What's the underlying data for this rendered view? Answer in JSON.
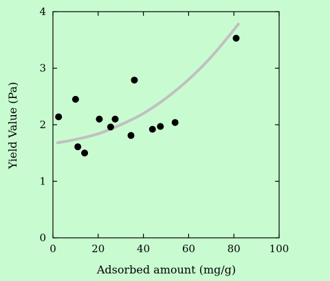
{
  "colors": {
    "background": "#c8fcd0",
    "axis": "#000000",
    "points": "#000000",
    "trend": "#c0c0c0"
  },
  "chart_data": {
    "type": "scatter",
    "title": "",
    "xlabel": "Adsorbed amount (mg/g)",
    "ylabel": "Yield Value (Pa)",
    "xlim": [
      0,
      100
    ],
    "ylim": [
      0,
      4
    ],
    "x_ticks": [
      0,
      20,
      40,
      60,
      80,
      100
    ],
    "y_ticks": [
      0,
      1,
      2,
      3,
      4
    ],
    "x_tick_labels": [
      "0",
      "20",
      "40",
      "60",
      "80",
      "100"
    ],
    "y_tick_labels": [
      "0",
      "1",
      "2",
      "3",
      "4"
    ],
    "grid": false,
    "legend": "none",
    "series": [
      {
        "points": [
          {
            "x": 2.5,
            "y": 2.14
          },
          {
            "x": 10,
            "y": 2.45
          },
          {
            "x": 11,
            "y": 1.61
          },
          {
            "x": 14,
            "y": 1.5
          },
          {
            "x": 20.5,
            "y": 2.1
          },
          {
            "x": 25.5,
            "y": 1.96
          },
          {
            "x": 27.5,
            "y": 2.1
          },
          {
            "x": 34.5,
            "y": 1.81
          },
          {
            "x": 36,
            "y": 2.79
          },
          {
            "x": 44,
            "y": 1.92
          },
          {
            "x": 47.5,
            "y": 1.97
          },
          {
            "x": 54,
            "y": 2.04
          },
          {
            "x": 81,
            "y": 3.53
          }
        ]
      }
    ],
    "trend_line": {
      "points": [
        {
          "x": 2,
          "y": 1.68
        },
        {
          "x": 10,
          "y": 1.74
        },
        {
          "x": 20,
          "y": 1.84
        },
        {
          "x": 30,
          "y": 2.0
        },
        {
          "x": 40,
          "y": 2.2
        },
        {
          "x": 50,
          "y": 2.47
        },
        {
          "x": 60,
          "y": 2.8
        },
        {
          "x": 70,
          "y": 3.2
        },
        {
          "x": 78,
          "y": 3.58
        },
        {
          "x": 82,
          "y": 3.78
        }
      ]
    }
  }
}
